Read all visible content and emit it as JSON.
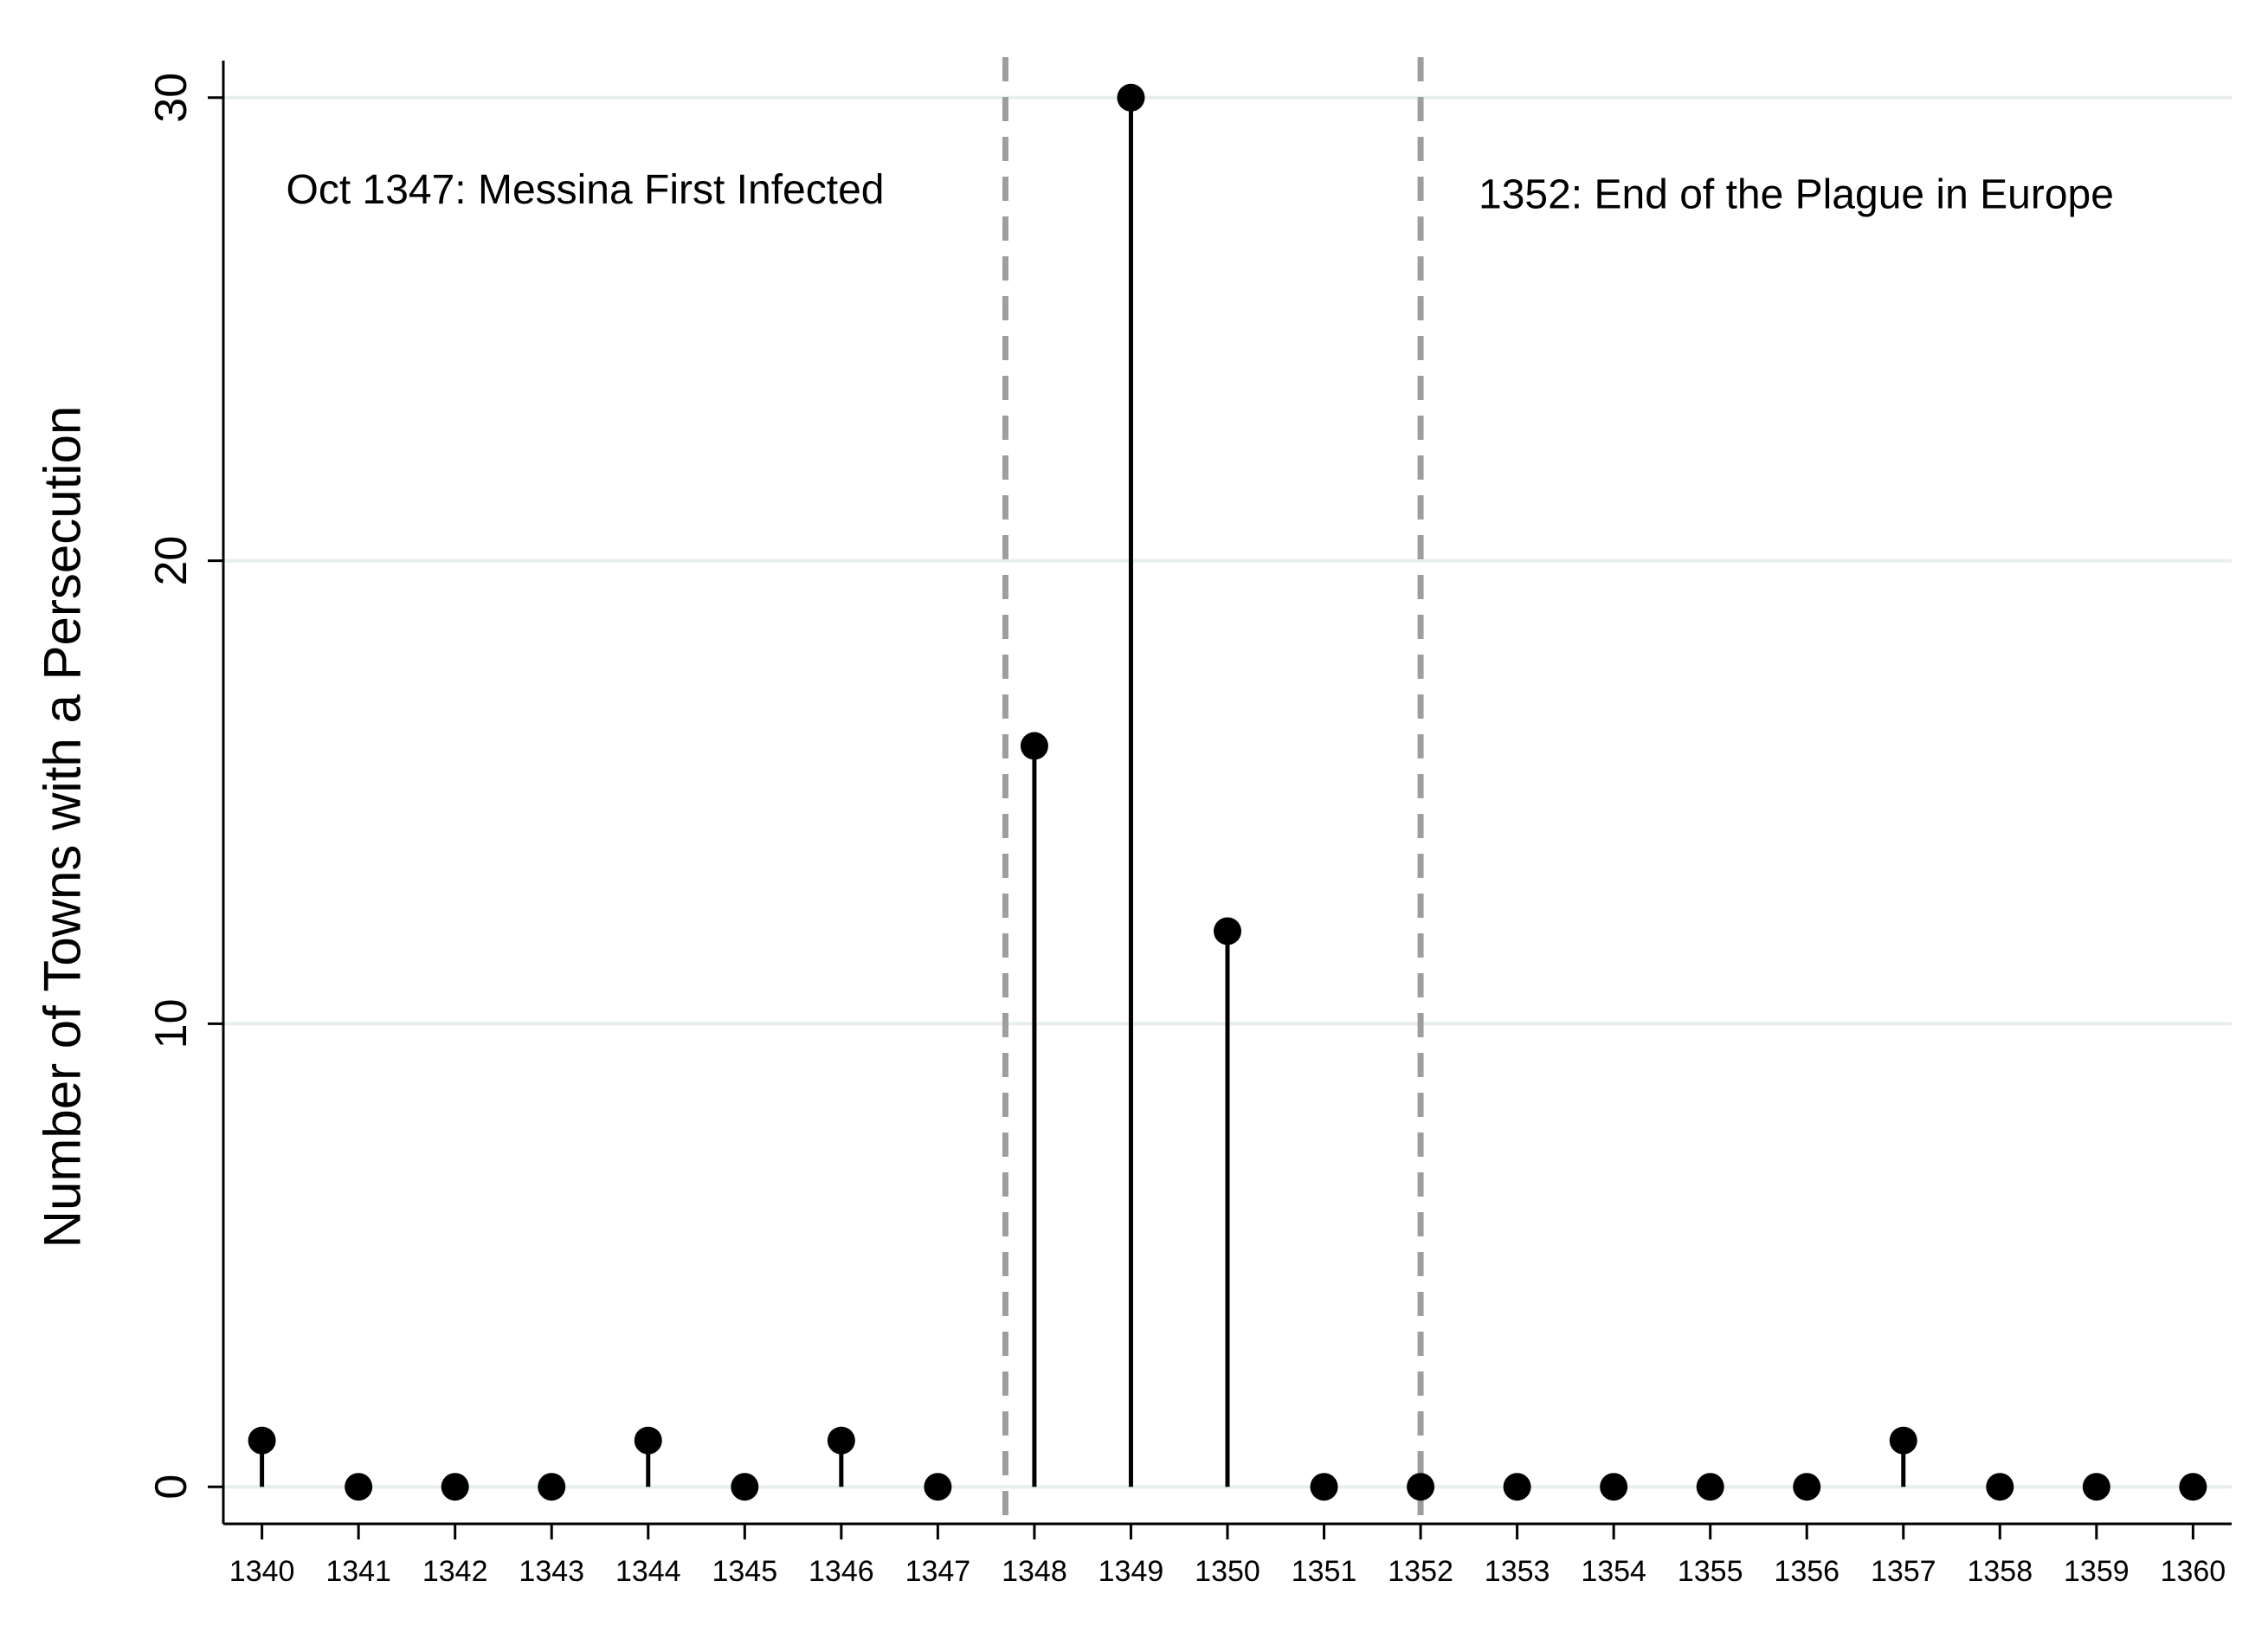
{
  "chart_data": {
    "type": "stem",
    "title": "",
    "xlabel": "",
    "ylabel": "Number of Towns with a Persecution",
    "x": [
      1340,
      1341,
      1342,
      1343,
      1344,
      1345,
      1346,
      1347,
      1348,
      1349,
      1350,
      1351,
      1352,
      1353,
      1354,
      1355,
      1356,
      1357,
      1358,
      1359,
      1360
    ],
    "values": [
      1,
      0,
      0,
      0,
      1,
      0,
      1,
      0,
      16,
      30,
      12,
      0,
      0,
      0,
      0,
      0,
      0,
      1,
      0,
      0,
      0
    ],
    "xlim": [
      1339.6,
      1360.4
    ],
    "ylim": [
      -0.8,
      30.8
    ],
    "yticks": [
      0,
      10,
      20,
      30
    ],
    "ytick_labels": [
      "0",
      "10",
      "20",
      "30"
    ],
    "xtick_labels": [
      "1340",
      "1341",
      "1342",
      "1343",
      "1344",
      "1345",
      "1346",
      "1347",
      "1348",
      "1349",
      "1350",
      "1351",
      "1352",
      "1353",
      "1354",
      "1355",
      "1356",
      "1357",
      "1358",
      "1359",
      "1360"
    ],
    "grid": true,
    "vlines": [
      {
        "x": 1347.7,
        "style": "dashed",
        "color": "#9e9e9e"
      },
      {
        "x": 1352.0,
        "style": "dashed",
        "color": "#9e9e9e"
      }
    ],
    "annotations": [
      {
        "text": "Oct 1347: Messina First Infected",
        "x": 1340.25,
        "y": 28.0
      },
      {
        "text": "1352: End of the Plague in Europe",
        "x": 1352.6,
        "y": 27.9
      }
    ],
    "colors": {
      "marker": "#000000",
      "grid": "#e6efee",
      "axis": "#000000",
      "vline": "#9e9e9e"
    }
  }
}
